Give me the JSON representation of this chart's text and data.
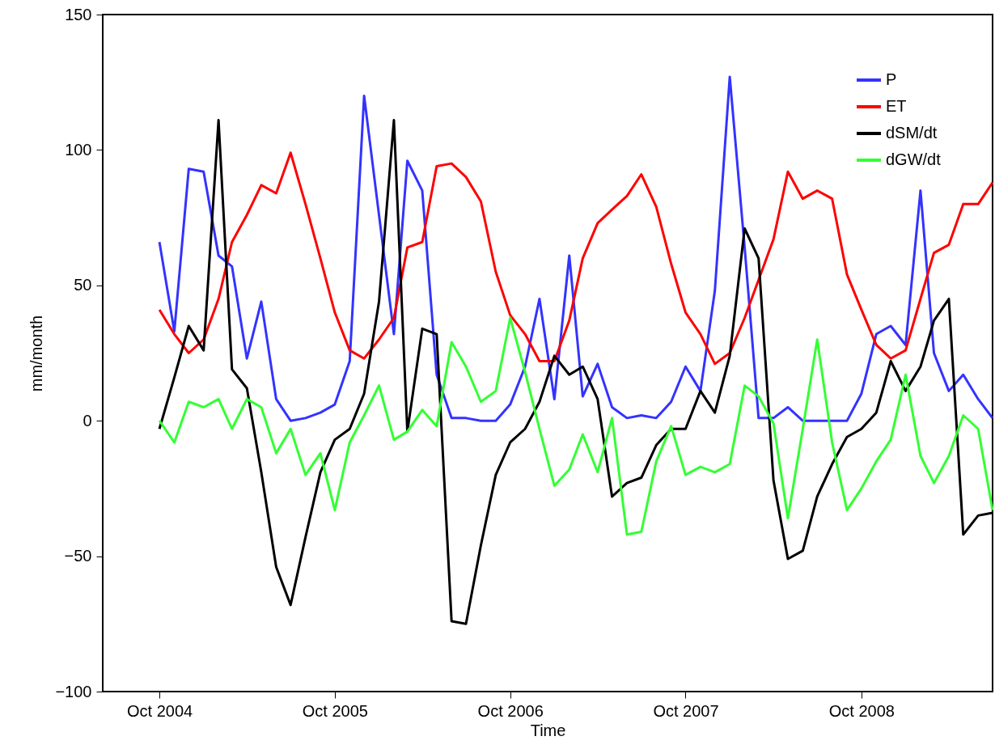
{
  "chart_data": {
    "type": "line",
    "xlabel": "Time",
    "ylabel": "mm/month",
    "x": [
      "2004-10",
      "2004-11",
      "2004-12",
      "2005-01",
      "2005-02",
      "2005-03",
      "2005-04",
      "2005-05",
      "2005-06",
      "2005-07",
      "2005-08",
      "2005-09",
      "2005-10",
      "2005-11",
      "2005-12",
      "2006-01",
      "2006-02",
      "2006-03",
      "2006-04",
      "2006-05",
      "2006-06",
      "2006-07",
      "2006-08",
      "2006-09",
      "2006-10",
      "2006-11",
      "2006-12",
      "2007-01",
      "2007-02",
      "2007-03",
      "2007-04",
      "2007-05",
      "2007-06",
      "2007-07",
      "2007-08",
      "2007-09",
      "2007-10",
      "2007-11",
      "2007-12",
      "2008-01",
      "2008-02",
      "2008-03",
      "2008-04",
      "2008-05",
      "2008-06",
      "2008-07",
      "2008-08",
      "2008-09",
      "2008-10",
      "2008-11",
      "2008-12",
      "2009-01",
      "2009-02",
      "2009-03",
      "2009-04",
      "2009-05",
      "2009-06",
      "2009-07"
    ],
    "series": [
      {
        "name": "P",
        "color": "#3333ff",
        "values": [
          66,
          33,
          93,
          92,
          61,
          57,
          23,
          44,
          8,
          0,
          1,
          3,
          6,
          22,
          120,
          76,
          32,
          96,
          85,
          17,
          1,
          1,
          0,
          0,
          6,
          20,
          45,
          8,
          61,
          9,
          21,
          5,
          1,
          2,
          1,
          7,
          20,
          11,
          48,
          127,
          64,
          1,
          1,
          5,
          0,
          0,
          0,
          0,
          10,
          32,
          35,
          28,
          85,
          25,
          11,
          17,
          8,
          1
        ]
      },
      {
        "name": "ET",
        "color": "#ff0000",
        "values": [
          41,
          32,
          25,
          30,
          45,
          66,
          76,
          87,
          84,
          99,
          80,
          60,
          40,
          26,
          23,
          30,
          38,
          64,
          66,
          94,
          95,
          90,
          81,
          55,
          39,
          32,
          22,
          22,
          37,
          60,
          73,
          78,
          83,
          91,
          79,
          58,
          40,
          32,
          21,
          25,
          38,
          52,
          67,
          92,
          82,
          85,
          82,
          54,
          41,
          28,
          23,
          26,
          45,
          62,
          65,
          80,
          80,
          88
        ]
      },
      {
        "name": "dSM/dt",
        "color": "#000000",
        "values": [
          -3,
          16,
          35,
          26,
          111,
          19,
          12,
          -19,
          -54,
          -68,
          -43,
          -19,
          -7,
          -3,
          10,
          44,
          111,
          -4,
          34,
          32,
          -74,
          -75,
          -46,
          -20,
          -8,
          -3,
          7,
          24,
          17,
          20,
          8,
          -28,
          -23,
          -21,
          -9,
          -3,
          -3,
          11,
          3,
          24,
          71,
          60,
          -22,
          -51,
          -48,
          -28,
          -16,
          -6,
          -3,
          3,
          22,
          11,
          20,
          37,
          45,
          -42,
          -35,
          -34
        ]
      },
      {
        "name": "dGW/dt",
        "color": "#33ff33",
        "values": [
          0,
          -8,
          7,
          5,
          8,
          -3,
          8,
          5,
          -12,
          -3,
          -20,
          -12,
          -33,
          -8,
          2,
          13,
          -7,
          -4,
          4,
          -2,
          29,
          20,
          7,
          11,
          38,
          18,
          -3,
          -24,
          -18,
          -5,
          -19,
          1,
          -42,
          -41,
          -15,
          -2,
          -20,
          -17,
          -19,
          -16,
          13,
          9,
          -1,
          -36,
          -3,
          30,
          -8,
          -33,
          -25,
          -15,
          -7,
          17,
          -13,
          -23,
          -13,
          2,
          -3,
          -33
        ]
      }
    ],
    "xlim": [
      "2004-06-05",
      "2009-07-01"
    ],
    "xticks": [
      {
        "value": "2004-10",
        "label": "Oct 2004"
      },
      {
        "value": "2005-10",
        "label": "Oct 2005"
      },
      {
        "value": "2006-10",
        "label": "Oct 2006"
      },
      {
        "value": "2007-10",
        "label": "Oct 2007"
      },
      {
        "value": "2008-10",
        "label": "Oct 2008"
      }
    ],
    "ylim": [
      -100,
      150
    ],
    "yticks": [
      -100,
      -50,
      0,
      50,
      100,
      150
    ],
    "legend": "top right",
    "grid": false,
    "marker": "none",
    "line_style": "solid"
  }
}
